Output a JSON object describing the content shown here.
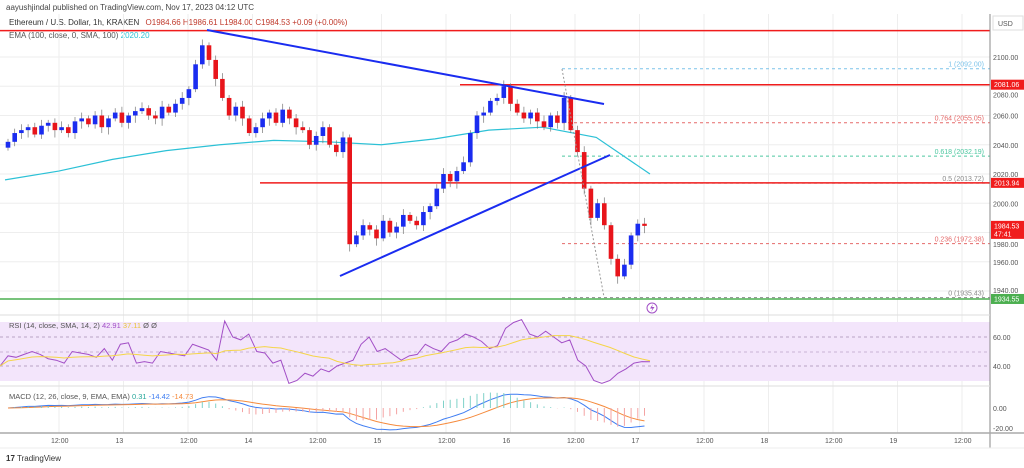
{
  "header": {
    "published": "aayushjindal published on TradingView.com, Nov 17, 2023 04:12 UTC",
    "symbol": "Ethereum / U.S. Dollar, 1h, KRAKEN",
    "ohlc": "O1984.66  H1986.61  L1984.00  C1984.53  +0.09 (+0.00%)",
    "ema_label": "EMA (100, close, 0, SMA, 100)",
    "ema_value": "2020.20"
  },
  "rsi": {
    "label": "RSI (14, close, SMA, 14, 2)",
    "value": "42.91",
    "sma": "37.11",
    "extra": "Ø  Ø",
    "ticks": [
      "60.00",
      "40.00"
    ]
  },
  "macd": {
    "label": "MACD (12, 26, close, 9, EMA, EMA)",
    "hist": "0.31",
    "macd": "-14.42",
    "signal": "-14.73",
    "ticks": [
      "0.00",
      "-20.00"
    ]
  },
  "footer": {
    "brand": "TradingView"
  },
  "colors": {
    "up": "#1a2cf0",
    "down": "#e8151b",
    "ema": "#2cc1d6",
    "trend": "#1a2cf0",
    "resistance": "#f01c1c",
    "support": "#4caf50",
    "rsi": "#a24fc6",
    "rsi_sma": "#f5d547",
    "macd": "#3f7df2",
    "signal": "#f58a3c"
  },
  "chart_data": {
    "type": "candlestick",
    "currency": "USD",
    "ylim": [
      1925,
      2125
    ],
    "y_ticks": [
      "2100.00",
      "2080.00",
      "2060.00",
      "2040.00",
      "2020.00",
      "2000.00",
      "1980.00",
      "1960.00",
      "1940.00"
    ],
    "x_ticks": [
      "12:00",
      "13",
      "12:00",
      "14",
      "12:00",
      "15",
      "12:00",
      "16",
      "12:00",
      "17",
      "12:00",
      "18",
      "12:00",
      "19",
      "12:00"
    ],
    "closes": [
      2042,
      2048,
      2050,
      2052,
      2047,
      2053,
      2055,
      2050,
      2052,
      2048,
      2056,
      2058,
      2054,
      2060,
      2052,
      2058,
      2062,
      2055,
      2060,
      2063,
      2065,
      2060,
      2058,
      2066,
      2062,
      2068,
      2072,
      2078,
      2095,
      2108,
      2098,
      2085,
      2072,
      2060,
      2066,
      2058,
      2048,
      2052,
      2058,
      2062,
      2055,
      2064,
      2058,
      2052,
      2050,
      2040,
      2046,
      2052,
      2040,
      2035,
      2045,
      1972,
      1978,
      1985,
      1982,
      1976,
      1988,
      1980,
      1984,
      1992,
      1988,
      1985,
      1994,
      1998,
      2010,
      2020,
      2015,
      2022,
      2028,
      2048,
      2060,
      2062,
      2070,
      2072,
      2080,
      2068,
      2062,
      2058,
      2062,
      2056,
      2052,
      2060,
      2055,
      2072,
      2050,
      2035,
      2010,
      1990,
      2000,
      1985,
      1962,
      1950,
      1958,
      1978,
      1986,
      1984.53
    ],
    "ema100": [
      2016,
      2022,
      2030,
      2036,
      2040,
      2043,
      2042,
      2040,
      2044,
      2050,
      2052,
      2045,
      2020
    ],
    "price_tags": [
      {
        "value": "2081.06",
        "price": 2081.06,
        "color": "#f01c1c"
      },
      {
        "value": "2013.94",
        "price": 2013.94,
        "color": "#f01c1c"
      },
      {
        "value": "1984.53",
        "sub": "47:41",
        "price": 1984.53,
        "color": "#f01c1c"
      },
      {
        "value": "1934.55",
        "price": 1934.55,
        "color": "#4caf50"
      }
    ],
    "fib_levels": [
      {
        "label": "1 (2092.00)",
        "price": 2092.0,
        "color": "#7cc3ea"
      },
      {
        "label": "0.764 (2055.05)",
        "price": 2055.05,
        "color": "#e56a6a"
      },
      {
        "label": "0.618 (2032.19)",
        "price": 2032.19,
        "color": "#4cc7a0"
      },
      {
        "label": "0.5 (2013.72)",
        "price": 2013.72,
        "color": "#8a8a8a"
      },
      {
        "label": "0.236 (1972.38)",
        "price": 1972.38,
        "color": "#e56a6a"
      },
      {
        "label": "0 (1935.43)",
        "price": 1935.43,
        "color": "#8a8a8a"
      }
    ],
    "horizontal_lines": [
      2118,
      2081.06,
      2013.94,
      1934.55
    ],
    "rsi_values": [
      40,
      47,
      46,
      48,
      50,
      48,
      45,
      44,
      42,
      50,
      49,
      48,
      46,
      52,
      44,
      55,
      56,
      42,
      43,
      42,
      50,
      49,
      48,
      47,
      55,
      53,
      51,
      44,
      71,
      60,
      58,
      62,
      50,
      49,
      42,
      44,
      28,
      30,
      35,
      33,
      38,
      36,
      40,
      42,
      44,
      55,
      60,
      50,
      52,
      48,
      44,
      47,
      48,
      55,
      52,
      50,
      56,
      58,
      62,
      60,
      57,
      52,
      54,
      66,
      70,
      72,
      62,
      60,
      64,
      60,
      56,
      58,
      44,
      40,
      30,
      28,
      30,
      35,
      38,
      42,
      43,
      42.91
    ]
  }
}
